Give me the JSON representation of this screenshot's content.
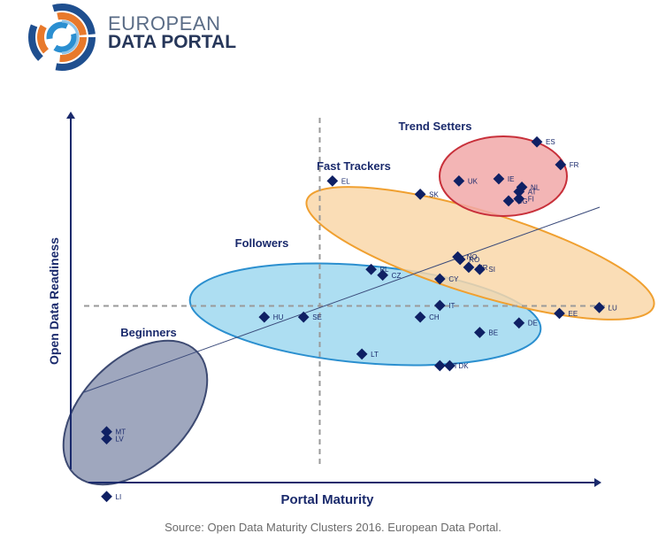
{
  "brand": {
    "line1": "EUROPEAN",
    "line2": "DATA PORTAL"
  },
  "chart_data": {
    "type": "scatter",
    "xlabel": "Portal Maturity",
    "ylabel": "Open Data Readiness",
    "grid": false,
    "reference_lines": {
      "x": 0.5,
      "y": 0.5
    },
    "clusters": [
      {
        "name": "Beginners",
        "color": "#8e98b3"
      },
      {
        "name": "Followers",
        "color": "#9fd8f0"
      },
      {
        "name": "Fast Trackers",
        "color": "#f9d7a9"
      },
      {
        "name": "Trend Setters",
        "color": "#f1a8a8"
      }
    ],
    "points": [
      {
        "label": "ES",
        "x": 0.876,
        "y": 0.895
      },
      {
        "label": "FR",
        "x": 0.917,
        "y": 0.84
      },
      {
        "label": "UK",
        "x": 0.741,
        "y": 0.801
      },
      {
        "label": "IE",
        "x": 0.81,
        "y": 0.806
      },
      {
        "label": "NL",
        "x": 0.85,
        "y": 0.786
      },
      {
        "label": "AT",
        "x": 0.845,
        "y": 0.775
      },
      {
        "label": "BG",
        "x": 0.827,
        "y": 0.753
      },
      {
        "label": "FI",
        "x": 0.845,
        "y": 0.758
      },
      {
        "label": "EL",
        "x": 0.522,
        "y": 0.801
      },
      {
        "label": "SK",
        "x": 0.674,
        "y": 0.769
      },
      {
        "label": "NO",
        "x": 0.739,
        "y": 0.618
      },
      {
        "label": "RO",
        "x": 0.743,
        "y": 0.612
      },
      {
        "label": "HR",
        "x": 0.758,
        "y": 0.593
      },
      {
        "label": "SI",
        "x": 0.777,
        "y": 0.588
      },
      {
        "label": "PL",
        "x": 0.589,
        "y": 0.588
      },
      {
        "label": "CZ",
        "x": 0.609,
        "y": 0.574
      },
      {
        "label": "CY",
        "x": 0.708,
        "y": 0.565
      },
      {
        "label": "LU",
        "x": 0.984,
        "y": 0.496
      },
      {
        "label": "EE",
        "x": 0.915,
        "y": 0.482
      },
      {
        "label": "IT",
        "x": 0.708,
        "y": 0.501
      },
      {
        "label": "CH",
        "x": 0.674,
        "y": 0.473
      },
      {
        "label": "DE",
        "x": 0.845,
        "y": 0.459
      },
      {
        "label": "BE",
        "x": 0.777,
        "y": 0.436
      },
      {
        "label": "HU",
        "x": 0.404,
        "y": 0.473
      },
      {
        "label": "SE",
        "x": 0.472,
        "y": 0.473
      },
      {
        "label": "LT",
        "x": 0.573,
        "y": 0.384
      },
      {
        "label": "PT",
        "x": 0.708,
        "y": 0.356
      },
      {
        "label": "DK",
        "x": 0.725,
        "y": 0.356
      },
      {
        "label": "MT",
        "x": 0.131,
        "y": 0.197
      },
      {
        "label": "LV",
        "x": 0.131,
        "y": 0.18
      },
      {
        "label": "LI",
        "x": 0.131,
        "y": 0.041
      }
    ]
  },
  "source": "Source: Open Data Maturity Clusters 2016. European Data Portal."
}
